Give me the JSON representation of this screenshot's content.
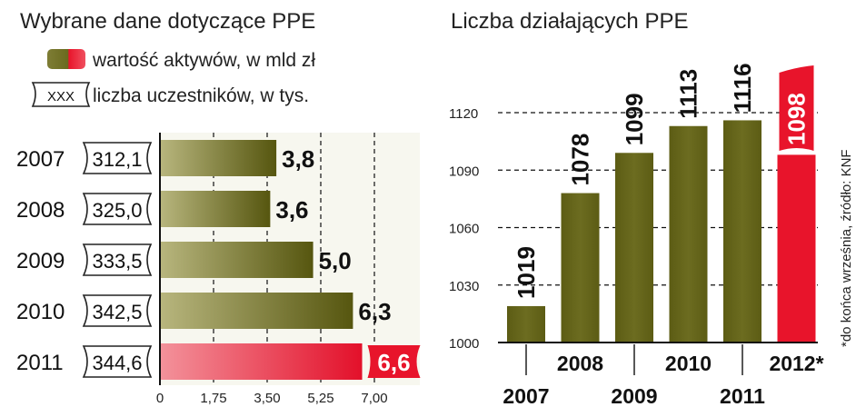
{
  "colors": {
    "olive_dark": "#5a5a14",
    "olive_light": "#b5b37a",
    "red": "#e8142b",
    "red_light": "#f2848f",
    "highlight_label_bg": "#e8142b"
  },
  "left": {
    "title": "Wybrane dane dotyczące PPE",
    "legend": {
      "assets_label": "wartość aktywów, w mld zł",
      "participants_swatch": "XXX",
      "participants_label": "liczba uczestników, w tys."
    }
  },
  "right": {
    "title": "Liczba działających PPE",
    "note": "*do końca września, źródło: KNF"
  },
  "chart_data": [
    {
      "type": "bar",
      "orientation": "horizontal",
      "title": "Wybrane dane dotyczące PPE",
      "categories": [
        "2007",
        "2008",
        "2009",
        "2010",
        "2011"
      ],
      "series": [
        {
          "name": "wartość aktywów, w mld zł",
          "values": [
            3.8,
            3.6,
            5.0,
            6.3,
            6.6
          ]
        }
      ],
      "value_labels": [
        "3,8",
        "3,6",
        "5,0",
        "6,3",
        "6,6"
      ],
      "participants": [
        "312,1",
        "325,0",
        "333,5",
        "342,5",
        "344,6"
      ],
      "xlim": [
        0,
        7
      ],
      "x_ticks": [
        0,
        1.75,
        3.5,
        5.25,
        7
      ],
      "x_tick_labels": [
        "0",
        "1,75",
        "3,50",
        "5,25",
        "7,00"
      ],
      "highlight_index": 4,
      "grid": true
    },
    {
      "type": "bar",
      "orientation": "vertical",
      "title": "Liczba działających PPE",
      "categories": [
        "2007",
        "2008",
        "2009",
        "2010",
        "2011",
        "2012*"
      ],
      "values": [
        1019,
        1078,
        1099,
        1113,
        1116,
        1098
      ],
      "ylim": [
        1000,
        1120
      ],
      "y_ticks": [
        1000,
        1030,
        1060,
        1090,
        1120
      ],
      "highlight_index": 5,
      "grid": true
    }
  ]
}
